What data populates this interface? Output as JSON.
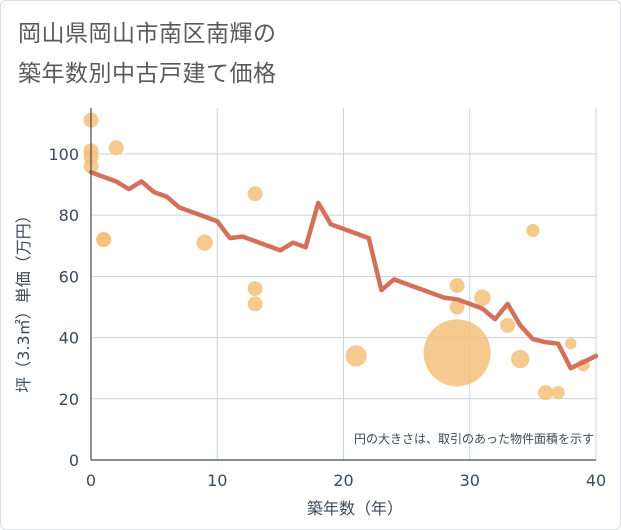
{
  "title_line1": "岡山県岡山市南区南輝の",
  "title_line2": "築年数別中古戸建て価格",
  "chart_data": {
    "type": "scatter+line",
    "xlabel": "築年数（年）",
    "ylabel": "坪（3.3㎡）単価（万円）",
    "xlim": [
      0,
      40
    ],
    "ylim": [
      0,
      115
    ],
    "x_ticks": [
      0,
      10,
      20,
      30,
      40
    ],
    "y_ticks": [
      0,
      20,
      40,
      60,
      80,
      100
    ],
    "grid": true,
    "annotation": "円の大きさは、取引のあった物件面積を示す",
    "colors": {
      "bubble": "#f5c17a",
      "line": "#d4705a",
      "grid": "#c8d3de"
    },
    "bubbles": [
      {
        "x": 0,
        "y": 111,
        "size": 1
      },
      {
        "x": 0,
        "y": 101,
        "size": 1
      },
      {
        "x": 0,
        "y": 99,
        "size": 1
      },
      {
        "x": 0,
        "y": 96,
        "size": 1
      },
      {
        "x": 1,
        "y": 72,
        "size": 1
      },
      {
        "x": 1,
        "y": 72,
        "size": 1
      },
      {
        "x": 2,
        "y": 102,
        "size": 1
      },
      {
        "x": 9,
        "y": 71,
        "size": 1.2
      },
      {
        "x": 13,
        "y": 87,
        "size": 1
      },
      {
        "x": 13,
        "y": 56,
        "size": 1
      },
      {
        "x": 13,
        "y": 51,
        "size": 1
      },
      {
        "x": 21,
        "y": 34,
        "size": 2
      },
      {
        "x": 29,
        "y": 57,
        "size": 1
      },
      {
        "x": 29,
        "y": 50,
        "size": 1
      },
      {
        "x": 29,
        "y": 35,
        "size": 20
      },
      {
        "x": 31,
        "y": 53,
        "size": 1.2
      },
      {
        "x": 33,
        "y": 44,
        "size": 1
      },
      {
        "x": 34,
        "y": 33,
        "size": 1.5
      },
      {
        "x": 35,
        "y": 75,
        "size": 0.8
      },
      {
        "x": 36,
        "y": 22,
        "size": 1
      },
      {
        "x": 37,
        "y": 22,
        "size": 0.8
      },
      {
        "x": 38,
        "y": 38,
        "size": 0.6
      },
      {
        "x": 39,
        "y": 31,
        "size": 0.7
      }
    ],
    "line": {
      "x": [
        0,
        1,
        2,
        3,
        4,
        5,
        6,
        7,
        8,
        9,
        10,
        11,
        12,
        13,
        14,
        15,
        16,
        17,
        18,
        19,
        20,
        21,
        22,
        23,
        24,
        25,
        26,
        27,
        28,
        29,
        30,
        31,
        32,
        33,
        34,
        35,
        36,
        37,
        38,
        39,
        40
      ],
      "y": [
        94,
        92.5,
        91,
        88.5,
        91,
        87.5,
        86,
        82.5,
        81,
        79.5,
        78,
        72.5,
        73,
        71.5,
        70,
        68.5,
        71,
        69.5,
        84,
        77,
        75.5,
        74,
        72.5,
        55.5,
        59,
        57.5,
        56,
        54.5,
        53,
        52.5,
        51,
        49.5,
        46,
        51,
        44,
        39.5,
        38.5,
        38,
        30,
        32,
        34
      ]
    }
  }
}
